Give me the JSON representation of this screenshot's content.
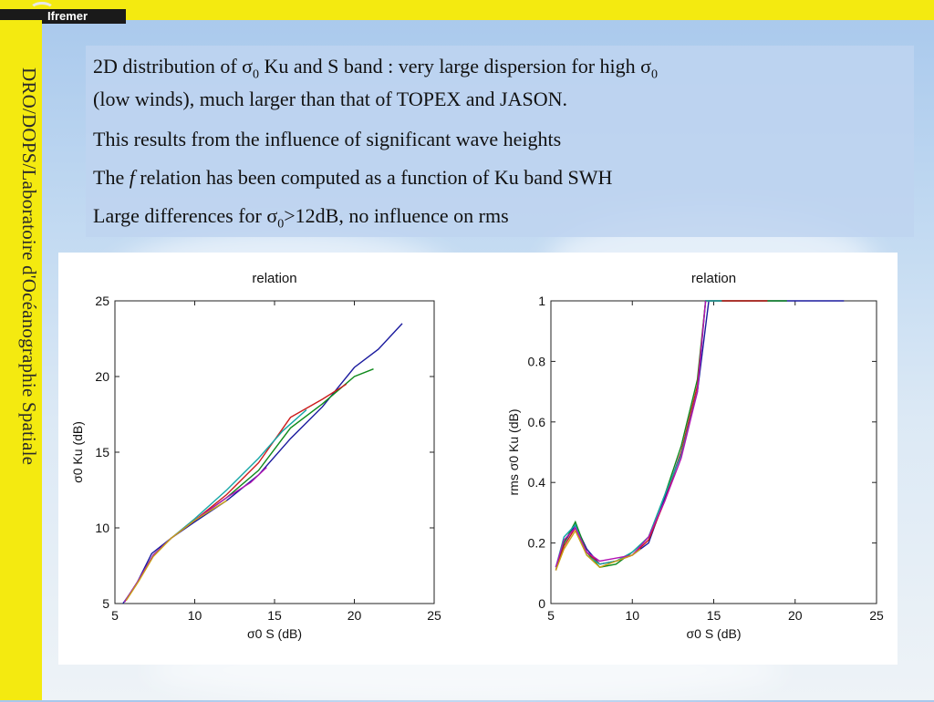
{
  "header": {
    "logo_text": "Ifremer"
  },
  "sidebar": {
    "title": "DRO/DOPS/Laboratoire d'Océanographie Spatiale"
  },
  "text": {
    "p1_pre": "2D distribution of ",
    "sigma": "σ",
    "zero": "0",
    "p1_mid": " Ku and S band : very large dispersion for high ",
    "p1_post": "(low winds), much larger than that of TOPEX and JASON.",
    "p2": "This results from the influence of significant wave heights",
    "p3_pre": "The ",
    "p3_f": "f",
    "p3_post": " relation has been computed as a function of Ku band SWH",
    "p4_pre": "Large differences for ",
    "p4_post": ">12dB, no influence on rms"
  },
  "chart_data": [
    {
      "type": "line",
      "title": "relation",
      "xlabel": "σ0 S (dB)",
      "ylabel": "σ0 Ku (dB)",
      "xlim": [
        5,
        25
      ],
      "ylim": [
        5,
        25
      ],
      "xticks": [
        5,
        10,
        15,
        20,
        25
      ],
      "yticks": [
        5,
        10,
        15,
        20,
        25
      ],
      "series": [
        {
          "color": "#1a1a9e",
          "x": [
            5.5,
            6.3,
            7.3,
            8.5,
            10,
            12,
            14,
            16,
            18,
            20,
            21.5,
            23
          ],
          "y": [
            5.0,
            6.2,
            8.3,
            9.3,
            10.4,
            11.8,
            13.5,
            15.9,
            18.0,
            20.6,
            21.8,
            23.5
          ]
        },
        {
          "color": "#0f8a1c",
          "x": [
            5.6,
            6.4,
            7.4,
            8.5,
            10,
            12,
            14,
            16,
            18,
            20,
            21.2
          ],
          "y": [
            5.1,
            6.4,
            8.2,
            9.3,
            10.5,
            12.0,
            13.8,
            16.6,
            18.2,
            20.0,
            20.5
          ]
        },
        {
          "color": "#cc1a1a",
          "x": [
            5.6,
            6.4,
            7.4,
            8.5,
            10,
            12,
            14,
            16,
            18,
            19.5
          ],
          "y": [
            5.1,
            6.4,
            8.2,
            9.3,
            10.5,
            12.2,
            14.3,
            17.3,
            18.5,
            19.5
          ]
        },
        {
          "color": "#13a6a6",
          "x": [
            5.6,
            6.4,
            7.4,
            8.5,
            10,
            12,
            14,
            15.5,
            17
          ],
          "y": [
            5.1,
            6.4,
            8.2,
            9.3,
            10.6,
            12.5,
            14.6,
            16.4,
            17.8
          ]
        },
        {
          "color": "#b313b3",
          "x": [
            5.6,
            6.4,
            7.4,
            8.5,
            10,
            12,
            13.5,
            14.5
          ],
          "y": [
            5.1,
            6.4,
            8.2,
            9.3,
            10.5,
            12.0,
            13.0,
            14.0
          ]
        },
        {
          "color": "#c9a214",
          "x": [
            5.7,
            6.5,
            7.4,
            8.5,
            10,
            12
          ],
          "y": [
            5.2,
            6.5,
            8.1,
            9.3,
            10.5,
            11.8
          ]
        }
      ],
      "grid": false
    },
    {
      "type": "line",
      "title": "relation",
      "xlabel": "σ0 S (dB)",
      "ylabel": "rms σ0 Ku (dB)",
      "xlim": [
        5,
        25
      ],
      "ylim": [
        0,
        1
      ],
      "xticks": [
        5,
        10,
        15,
        20,
        25
      ],
      "yticks": [
        0,
        0.2,
        0.4,
        0.6,
        0.8,
        1
      ],
      "series": [
        {
          "color": "#1a1a9e",
          "x": [
            5.3,
            5.8,
            6.5,
            7.2,
            8,
            9,
            10,
            11,
            12,
            13,
            14,
            14.7,
            15.2,
            16,
            17,
            18,
            22.5,
            23
          ],
          "y": [
            0.12,
            0.2,
            0.26,
            0.18,
            0.13,
            0.14,
            0.16,
            0.2,
            0.35,
            0.5,
            0.7,
            1.0,
            1.0,
            1.0,
            1.0,
            1.0,
            1.0,
            1.0
          ]
        },
        {
          "color": "#0f8a1c",
          "x": [
            5.3,
            5.8,
            6.5,
            7.2,
            8,
            9,
            10,
            11,
            12,
            13,
            14,
            14.5,
            15,
            16,
            17,
            18,
            19.5
          ],
          "y": [
            0.11,
            0.2,
            0.27,
            0.17,
            0.12,
            0.13,
            0.17,
            0.22,
            0.36,
            0.52,
            0.74,
            1.0,
            1.0,
            1.0,
            1.0,
            1.0,
            1.0
          ]
        },
        {
          "color": "#cc1a1a",
          "x": [
            5.3,
            5.8,
            6.5,
            7.2,
            8,
            9,
            10,
            11,
            12,
            13,
            14,
            14.5,
            15,
            16,
            17,
            18.3
          ],
          "y": [
            0.11,
            0.19,
            0.25,
            0.17,
            0.13,
            0.14,
            0.16,
            0.21,
            0.34,
            0.5,
            0.72,
            1.0,
            1.0,
            1.0,
            1.0,
            1.0
          ]
        },
        {
          "color": "#13a6a6",
          "x": [
            5.3,
            5.8,
            6.5,
            7.2,
            8,
            9,
            10,
            11,
            12,
            13,
            14,
            14.5,
            15.5
          ],
          "y": [
            0.12,
            0.22,
            0.26,
            0.16,
            0.13,
            0.14,
            0.17,
            0.22,
            0.36,
            0.49,
            0.7,
            1.0,
            1.0
          ]
        },
        {
          "color": "#b313b3",
          "x": [
            5.3,
            5.8,
            6.5,
            7.2,
            8,
            9,
            10,
            11,
            12,
            13,
            14,
            14.5
          ],
          "y": [
            0.12,
            0.21,
            0.25,
            0.17,
            0.14,
            0.15,
            0.16,
            0.22,
            0.34,
            0.48,
            0.7,
            1.0
          ]
        },
        {
          "color": "#c9a214",
          "x": [
            5.3,
            5.8,
            6.5,
            7.2,
            8,
            9,
            10,
            10.5
          ],
          "y": [
            0.11,
            0.18,
            0.24,
            0.16,
            0.12,
            0.14,
            0.16,
            0.18
          ]
        }
      ],
      "grid": false
    }
  ]
}
